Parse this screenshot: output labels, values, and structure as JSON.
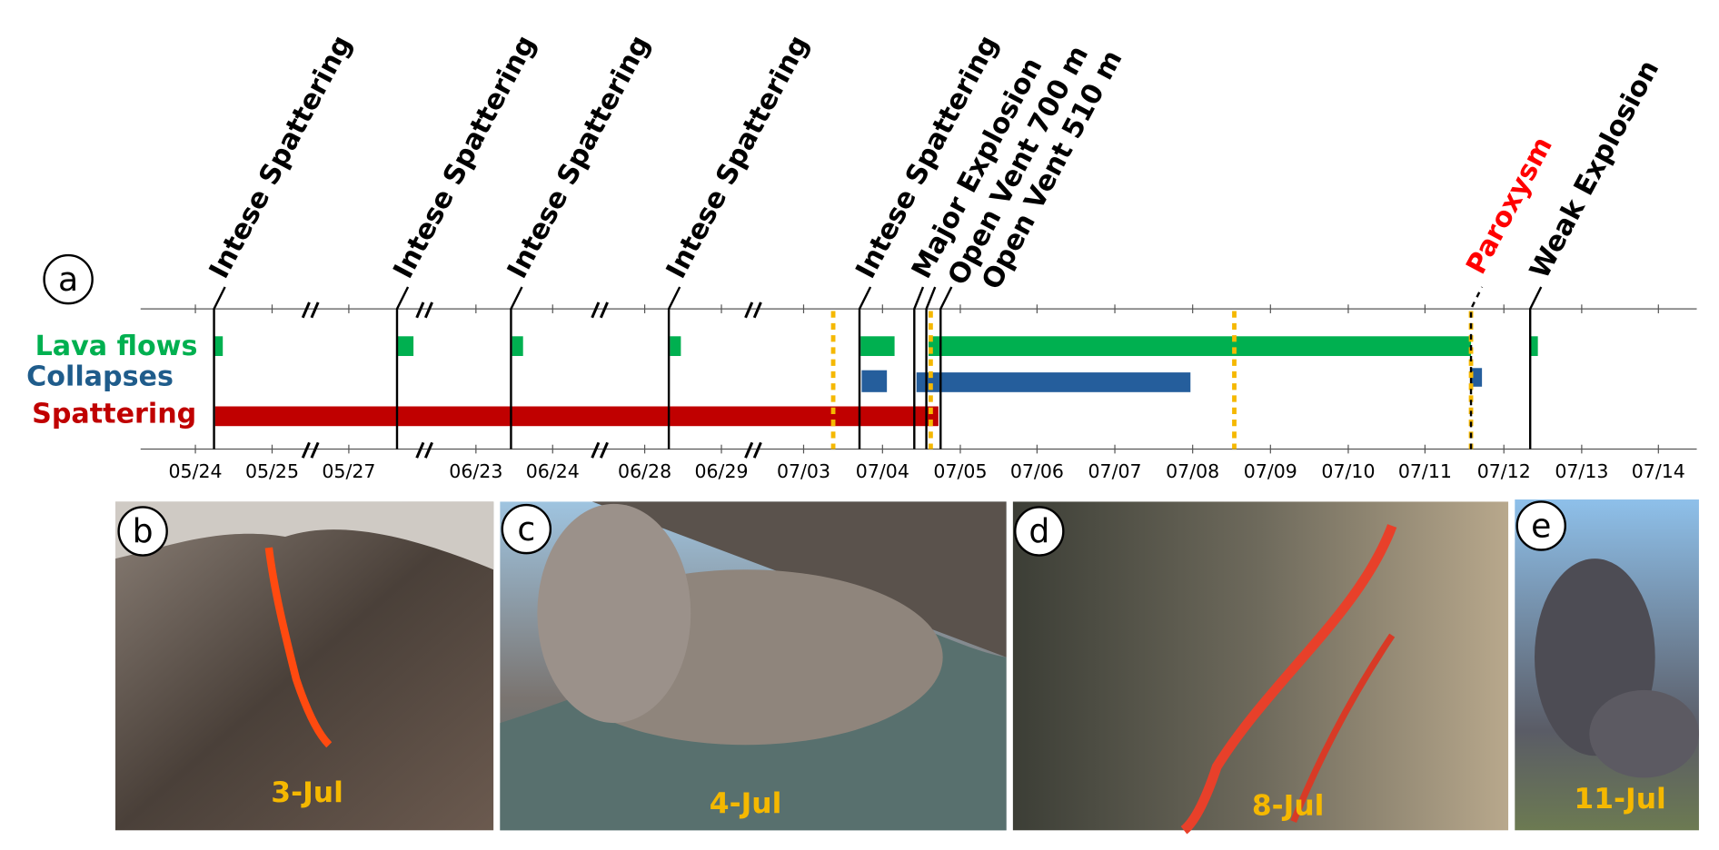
{
  "panel_a": {
    "label": "a",
    "rows": [
      "Lava flows",
      "Collapses",
      "Spattering"
    ],
    "events": [
      "Intese Spattering",
      "Intese Spattering",
      "Intese Spattering",
      "Intese Spattering",
      "Intese Spattering",
      "Major Explosion",
      "Open Vent 700 m",
      "Open Vent 510 m",
      "Paroxysm",
      "Weak Explosion"
    ],
    "dates": [
      "05/24",
      "05/25",
      "05/27",
      "06/23",
      "06/24",
      "06/28",
      "06/29",
      "07/03",
      "07/04",
      "07/05",
      "07/06",
      "07/07",
      "07/08",
      "07/09",
      "07/10",
      "07/11",
      "07/12",
      "07/13",
      "07/14"
    ]
  },
  "photos": [
    {
      "label": "b",
      "caption": "3-Jul"
    },
    {
      "label": "c",
      "caption": "4-Jul"
    },
    {
      "label": "d",
      "caption": "8-Jul"
    },
    {
      "label": "e",
      "caption": "11-Jul"
    }
  ]
}
